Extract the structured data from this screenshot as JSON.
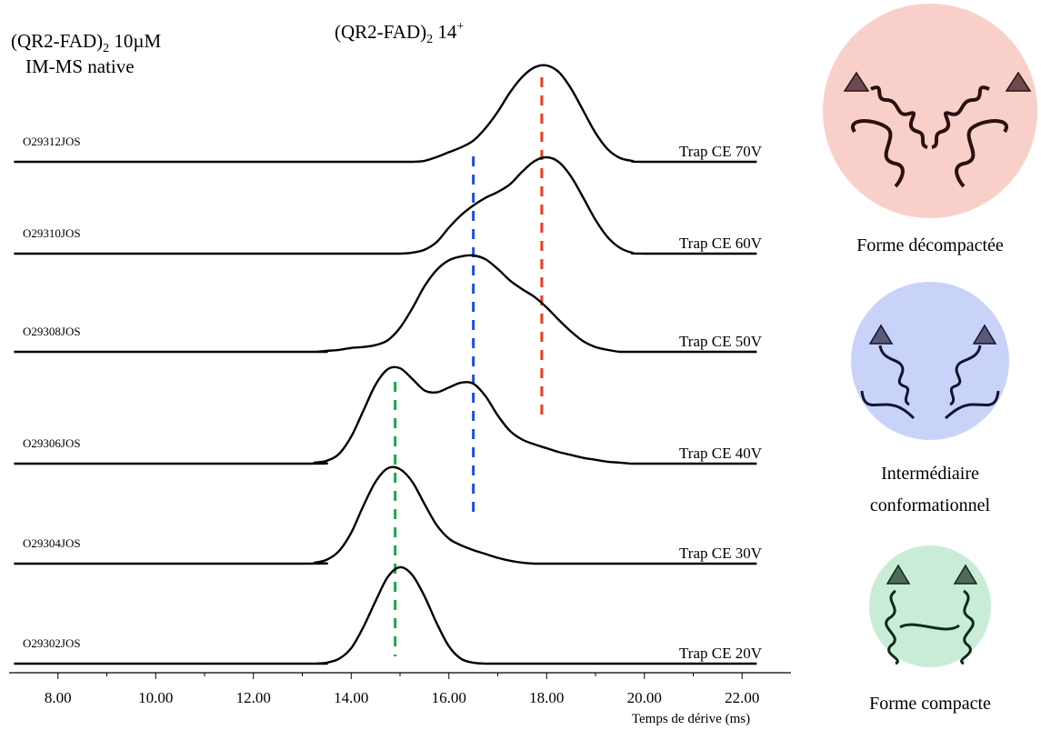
{
  "chart_data": {
    "type": "line",
    "title": {
      "main": "(QR2-FAD)",
      "sub": "2",
      "rest": " 10µM",
      "line2": "IM-MS native"
    },
    "ion_label": {
      "main": "(QR2-FAD)",
      "sub": "2",
      "rest": " 14",
      "sup": "+"
    },
    "x_label": "Temps de dérive (ms)",
    "xlim": [
      7,
      23
    ],
    "ylim": [
      0,
      100
    ],
    "xticks": [
      {
        "value": 8,
        "label": "8.00"
      },
      {
        "value": 10,
        "label": "10.00"
      },
      {
        "value": 12,
        "label": "12.00"
      },
      {
        "value": 14,
        "label": "14.00"
      },
      {
        "value": 16,
        "label": "16.00"
      },
      {
        "value": 18,
        "label": "18.00"
      },
      {
        "value": 20,
        "label": "20.00"
      },
      {
        "value": 22,
        "label": "22.00"
      }
    ],
    "x": [
      7.1,
      13,
      13.25,
      13.5,
      13.75,
      14,
      14.25,
      14.5,
      14.75,
      15,
      15.25,
      15.5,
      15.75,
      16,
      16.25,
      16.5,
      16.75,
      17,
      17.25,
      17.5,
      17.75,
      18,
      18.25,
      18.5,
      18.75,
      19,
      19.25,
      19.5,
      19.75,
      20,
      22.3
    ],
    "series": [
      {
        "name": "Trap CE 70V",
        "file": "O29312JOS",
        "color": "#000000",
        "values": [
          0,
          0,
          0,
          0,
          0,
          0,
          0,
          0,
          0,
          0,
          0,
          1,
          5,
          10,
          15,
          22,
          35,
          52,
          72,
          88,
          98,
          100,
          93,
          76,
          53,
          30,
          13,
          4,
          1,
          0,
          0
        ]
      },
      {
        "name": "Trap CE 60V",
        "file": "O29310JOS",
        "color": "#000000",
        "values": [
          0,
          0,
          0,
          0,
          0,
          0,
          0,
          0,
          0,
          0,
          1,
          4,
          12,
          27,
          40,
          50,
          58,
          64,
          72,
          85,
          96,
          100,
          95,
          80,
          58,
          35,
          17,
          6,
          1,
          0,
          0
        ]
      },
      {
        "name": "Trap CE 50V",
        "file": "O29308JOS",
        "color": "#000000",
        "values": [
          0,
          0,
          0,
          1,
          2,
          4,
          5,
          7,
          12,
          25,
          45,
          68,
          85,
          95,
          99,
          100,
          96,
          86,
          74,
          65,
          57,
          46,
          33,
          21,
          11,
          5,
          2,
          0,
          0,
          0,
          0
        ]
      },
      {
        "name": "Trap CE 40V",
        "file": "O29306JOS",
        "color": "#000000",
        "values": [
          0,
          0,
          1,
          3,
          10,
          28,
          55,
          82,
          98,
          99,
          88,
          76,
          74,
          79,
          84,
          83,
          70,
          50,
          34,
          25,
          20,
          16,
          12,
          9,
          6,
          4,
          2,
          1,
          0,
          0,
          0
        ]
      },
      {
        "name": "Trap CE 30V",
        "file": "O29304JOS",
        "color": "#000000",
        "values": [
          0,
          0,
          1,
          4,
          13,
          32,
          60,
          85,
          99,
          98,
          85,
          62,
          40,
          26,
          19,
          14,
          10,
          6,
          3,
          1,
          0,
          0,
          0,
          0,
          0,
          0,
          0,
          0,
          0,
          0,
          0
        ]
      },
      {
        "name": "Trap CE 20V",
        "file": "O29302JOS",
        "color": "#000000",
        "values": [
          0,
          0,
          0,
          1,
          5,
          16,
          38,
          65,
          90,
          100,
          92,
          70,
          42,
          18,
          5,
          1,
          0,
          0,
          0,
          0,
          0,
          0,
          0,
          0,
          0,
          0,
          0,
          0,
          0,
          0,
          0
        ]
      }
    ],
    "markers": [
      {
        "x": 14.9,
        "color": "#1aa84e"
      },
      {
        "x": 16.5,
        "color": "#1f4fe0"
      },
      {
        "x": 17.9,
        "color": "#e8401c"
      }
    ],
    "forms": [
      {
        "label": "Forme décompactée",
        "color": "#f9d0c9"
      },
      {
        "label": [
          "Intermédiaire",
          "conformationnel"
        ],
        "color": "#c9d3f9"
      },
      {
        "label": "Forme compacte",
        "color": "#c9ecd6"
      }
    ]
  }
}
